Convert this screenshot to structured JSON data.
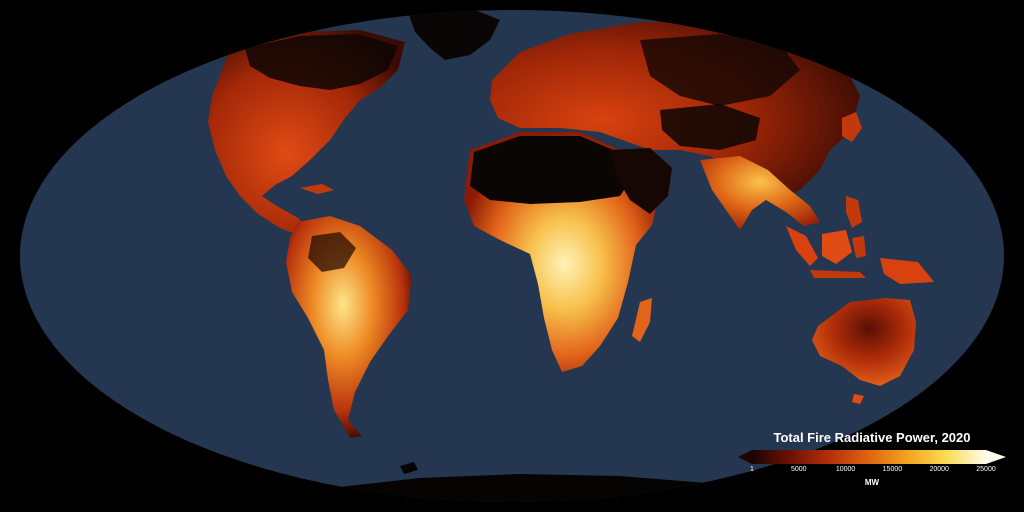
{
  "map": {
    "projection": "mollweide",
    "ocean_color": "#253651",
    "land_colors": {
      "no_fire": "#0b0705",
      "low": "#5a0e04",
      "medium": "#c23a0c",
      "high": "#f08a1c",
      "very_high": "#fde37a",
      "extreme": "#fffbe6"
    }
  },
  "legend": {
    "title": "Total Fire Radiative Power, 2020",
    "unit": "MW",
    "min": 1,
    "max": 25000,
    "ticks": [
      "1",
      "5000",
      "10000",
      "15000",
      "20000",
      "25000"
    ],
    "tick_values": [
      1,
      5000,
      10000,
      15000,
      20000,
      25000
    ],
    "colors": [
      "#1a0502",
      "#6e1205",
      "#b5300a",
      "#e0650f",
      "#f4a41f",
      "#fbdc55",
      "#fffbe9"
    ],
    "extends": "max"
  }
}
